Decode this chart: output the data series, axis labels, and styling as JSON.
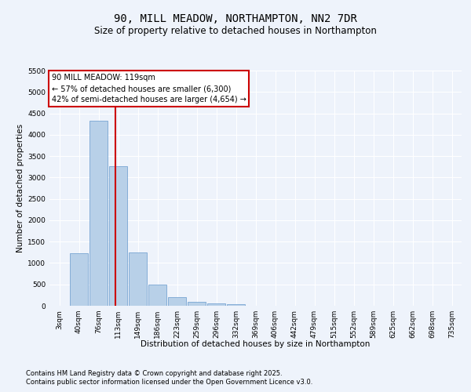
{
  "title_line1": "90, MILL MEADOW, NORTHAMPTON, NN2 7DR",
  "title_line2": "Size of property relative to detached houses in Northampton",
  "xlabel": "Distribution of detached houses by size in Northampton",
  "ylabel": "Number of detached properties",
  "categories": [
    "3sqm",
    "40sqm",
    "76sqm",
    "113sqm",
    "149sqm",
    "186sqm",
    "223sqm",
    "259sqm",
    "296sqm",
    "332sqm",
    "369sqm",
    "406sqm",
    "442sqm",
    "479sqm",
    "515sqm",
    "552sqm",
    "589sqm",
    "625sqm",
    "662sqm",
    "698sqm",
    "735sqm"
  ],
  "values": [
    0,
    1220,
    4330,
    3270,
    1250,
    500,
    200,
    100,
    60,
    40,
    0,
    0,
    0,
    0,
    0,
    0,
    0,
    0,
    0,
    0,
    0
  ],
  "bar_color": "#b8d0e8",
  "bar_edge_color": "#6699cc",
  "vline_x_pos": 2.85,
  "vline_color": "#cc0000",
  "annotation_line1": "90 MILL MEADOW: 119sqm",
  "annotation_line2": "← 57% of detached houses are smaller (6,300)",
  "annotation_line3": "42% of semi-detached houses are larger (4,654) →",
  "annotation_box_color": "#ffffff",
  "annotation_box_edge": "#cc0000",
  "ylim_max": 5500,
  "yticks": [
    0,
    500,
    1000,
    1500,
    2000,
    2500,
    3000,
    3500,
    4000,
    4500,
    5000,
    5500
  ],
  "background_color": "#eef3fb",
  "grid_color": "#ffffff",
  "footnote_line1": "Contains HM Land Registry data © Crown copyright and database right 2025.",
  "footnote_line2": "Contains public sector information licensed under the Open Government Licence v3.0.",
  "title_fontsize": 10,
  "subtitle_fontsize": 8.5,
  "axis_label_fontsize": 7.5,
  "tick_fontsize": 6.5,
  "annotation_fontsize": 7,
  "footnote_fontsize": 6
}
